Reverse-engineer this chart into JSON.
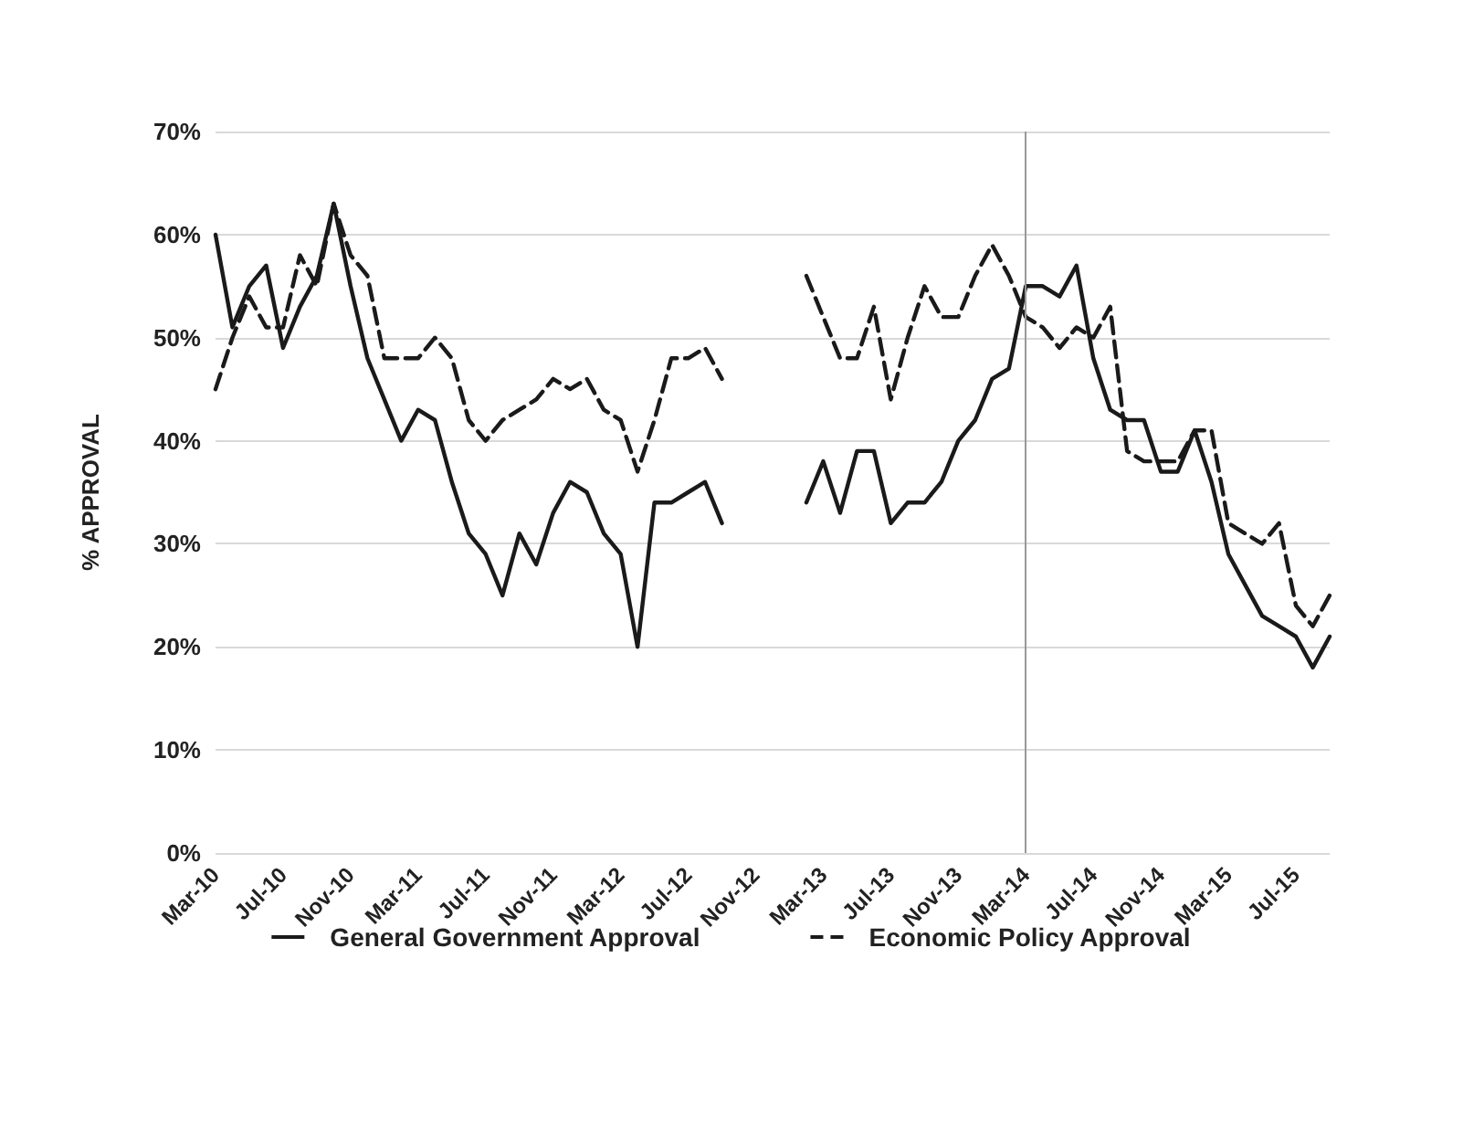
{
  "chart_data": {
    "type": "line",
    "ylabel": "% APPROVAL",
    "categories": [
      "Mar-10",
      null,
      null,
      null,
      "Jul-10",
      null,
      null,
      null,
      "Nov-10",
      null,
      null,
      null,
      "Mar-11",
      null,
      null,
      null,
      "Jul-11",
      null,
      null,
      null,
      "Nov-11",
      null,
      null,
      null,
      "Mar-12",
      null,
      null,
      null,
      "Jul-12",
      null,
      null,
      null,
      "Nov-12",
      null,
      null,
      null,
      "Mar-13",
      null,
      null,
      null,
      "Jul-13",
      null,
      null,
      null,
      "Nov-13",
      null,
      null,
      null,
      "Mar-14",
      null,
      null,
      null,
      "Jul-14",
      null,
      null,
      null,
      "Nov-14",
      null,
      null,
      null,
      "Mar-15",
      null,
      null,
      null,
      "Jul-15",
      null,
      null
    ],
    "series": [
      {
        "name": "General Government Approval",
        "color": "#1a1a1a",
        "line_style": "solid",
        "values": [
          60,
          51,
          55,
          57,
          49,
          53,
          56,
          63,
          55,
          48,
          44,
          40,
          43,
          42,
          36,
          31,
          29,
          25,
          31,
          28,
          33,
          36,
          35,
          31,
          29,
          20,
          34,
          34,
          35,
          36,
          32,
          null,
          null,
          null,
          null,
          34,
          38,
          33,
          39,
          39,
          32,
          34,
          34,
          36,
          40,
          42,
          46,
          47,
          55,
          55,
          54,
          57,
          48,
          43,
          42,
          42,
          37,
          37,
          41,
          36,
          29,
          26,
          23,
          22,
          21,
          18,
          21
        ]
      },
      {
        "name": "Economic Policy Approval",
        "color": "#1a1a1a",
        "line_style": "dashed",
        "values": [
          45,
          50,
          54,
          51,
          51,
          58,
          55,
          63,
          58,
          56,
          48,
          48,
          48,
          50,
          48,
          42,
          40,
          42,
          43,
          44,
          46,
          45,
          46,
          43,
          42,
          37,
          42,
          48,
          48,
          49,
          46,
          null,
          null,
          null,
          null,
          56,
          52,
          48,
          48,
          53,
          44,
          50,
          55,
          52,
          52,
          56,
          59,
          56,
          52,
          51,
          49,
          51,
          50,
          53,
          39,
          38,
          38,
          38,
          41,
          41,
          32,
          31,
          30,
          32,
          24,
          22,
          25
        ]
      }
    ],
    "ylim": [
      0,
      70
    ],
    "yticks": [
      {
        "value": 0,
        "label": "0%"
      },
      {
        "value": 10,
        "label": "10%"
      },
      {
        "value": 20,
        "label": "20%"
      },
      {
        "value": 30,
        "label": "30%"
      },
      {
        "value": 40,
        "label": "40%"
      },
      {
        "value": 50,
        "label": "50%"
      },
      {
        "value": 60,
        "label": "60%"
      },
      {
        "value": 70,
        "label": "70%"
      }
    ],
    "ref_lines": [
      {
        "axis": "x",
        "value": "Mar-14",
        "color": "#999999"
      }
    ],
    "grid": "y",
    "legend": "bottom",
    "marker": "none"
  }
}
